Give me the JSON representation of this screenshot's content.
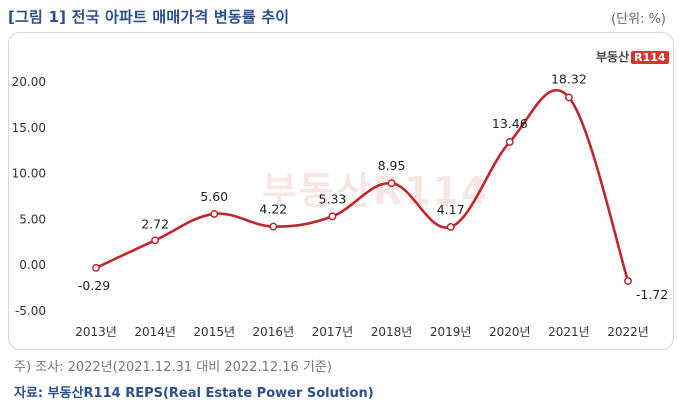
{
  "header": {
    "title": "[그림 1] 전국 아파트 매매가격 변동률 추이",
    "unit": "(단위: %)"
  },
  "logo": {
    "text": "부동산",
    "box": "R114"
  },
  "watermark": "부동산R114",
  "footer": {
    "note": "주) 조사: 2022년(2021.12.31 대비 2022.12.16 기준)",
    "source": "자료: 부동산R114 REPS(Real Estate Power Solution)"
  },
  "colors": {
    "line": "#c0262d",
    "title": "#2a4f8a"
  },
  "chart_data": {
    "type": "line",
    "categories": [
      "2013년",
      "2014년",
      "2015년",
      "2016년",
      "2017년",
      "2018년",
      "2019년",
      "2020년",
      "2021년",
      "2022년"
    ],
    "values": [
      -0.29,
      2.72,
      5.6,
      4.22,
      5.33,
      8.95,
      4.17,
      13.46,
      18.32,
      -1.72
    ],
    "data_labels": [
      "-0.29",
      "2.72",
      "5.60",
      "4.22",
      "5.33",
      "8.95",
      "4.17",
      "13.46",
      "18.32",
      "-1.72"
    ],
    "y_ticks": [
      "20.00",
      "15.00",
      "10.00",
      "5.00",
      "0.00",
      "-5.00"
    ],
    "y_tick_values": [
      20,
      15,
      10,
      5,
      0,
      -5
    ],
    "ylim": [
      -5,
      20
    ],
    "grid": false,
    "smooth": true
  }
}
